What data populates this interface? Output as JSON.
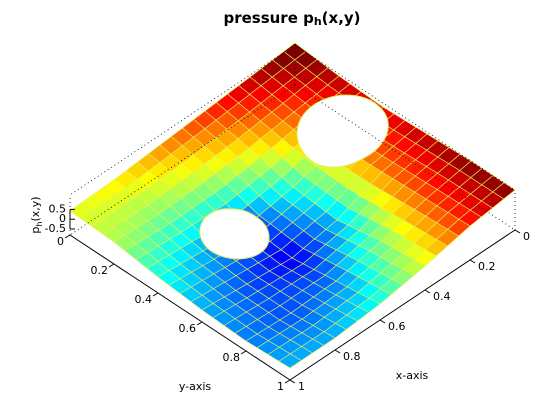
{
  "chart_data": {
    "type": "surface",
    "title": {
      "main": "pressure p",
      "sub": "h",
      "rest": "(x,y)"
    },
    "x_label": "x-axis",
    "y_label": "y-axis",
    "z_label": {
      "main": "p",
      "sub": "h",
      "rest": "(x,y)"
    },
    "x": [
      0,
      0.2,
      0.4,
      0.6,
      0.8,
      1
    ],
    "y": [
      0,
      0.2,
      0.4,
      0.6,
      0.8,
      1
    ],
    "z": [
      [
        0.55,
        0.45,
        0.35,
        0.25,
        0.15,
        0.1
      ],
      [
        0.45,
        0.3,
        0.15,
        0.05,
        0.0,
        0.05
      ],
      [
        0.4,
        0.2,
        -0.1,
        -0.3,
        -0.2,
        -0.1
      ],
      [
        0.45,
        0.25,
        -0.2,
        -0.4,
        -0.3,
        -0.2
      ],
      [
        0.5,
        0.3,
        0.0,
        -0.25,
        -0.3,
        -0.25
      ],
      [
        0.5,
        0.35,
        0.1,
        -0.1,
        -0.2,
        -0.2
      ]
    ],
    "xlim": [
      0,
      1
    ],
    "ylim": [
      0,
      1
    ],
    "zlim": [
      -0.5,
      0.5
    ],
    "xticks": [
      0,
      0.2,
      0.4,
      0.6,
      0.8,
      1
    ],
    "yticks": [
      0,
      0.2,
      0.4,
      0.6,
      0.8,
      1
    ],
    "zticks": [
      -0.5,
      0,
      0.5
    ],
    "colormap": "jet",
    "edge_color": "#e6f05a"
  }
}
